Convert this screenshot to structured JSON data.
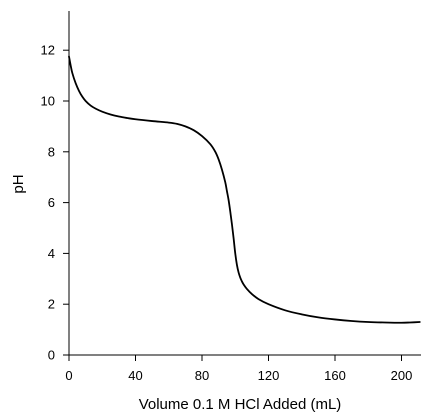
{
  "chart_data": {
    "type": "line",
    "title": "",
    "xlabel": "Volume 0.1 M HCl Added (mL)",
    "ylabel": "pH",
    "xlim": [
      0,
      212
    ],
    "ylim": [
      0,
      13.5
    ],
    "x_ticks": [
      0,
      40,
      80,
      120,
      160,
      200
    ],
    "y_ticks": [
      0,
      2,
      4,
      6,
      8,
      10,
      12
    ],
    "grid": false,
    "legend": "none",
    "line_color": "#000000",
    "series": [
      {
        "x": [
          0,
          1,
          2,
          4,
          6,
          8,
          10,
          13,
          16,
          20,
          25,
          30,
          35,
          40,
          50,
          60,
          65,
          70,
          75,
          80,
          85,
          88,
          90,
          92,
          94,
          95,
          96,
          97,
          98,
          99,
          100,
          101,
          102,
          103,
          104,
          105,
          107,
          110,
          114,
          120,
          130,
          140,
          150,
          160,
          170,
          180,
          190,
          200,
          205,
          211
        ],
        "y": [
          11.75,
          11.4,
          11.1,
          10.7,
          10.4,
          10.17,
          10.0,
          9.82,
          9.7,
          9.58,
          9.47,
          9.39,
          9.33,
          9.28,
          9.21,
          9.15,
          9.1,
          9.0,
          8.85,
          8.62,
          8.3,
          8.0,
          7.7,
          7.3,
          6.8,
          6.45,
          6.1,
          5.65,
          5.15,
          4.6,
          4.0,
          3.55,
          3.25,
          3.05,
          2.9,
          2.78,
          2.6,
          2.4,
          2.2,
          2.0,
          1.76,
          1.6,
          1.48,
          1.4,
          1.34,
          1.3,
          1.28,
          1.27,
          1.28,
          1.3
        ]
      }
    ]
  }
}
